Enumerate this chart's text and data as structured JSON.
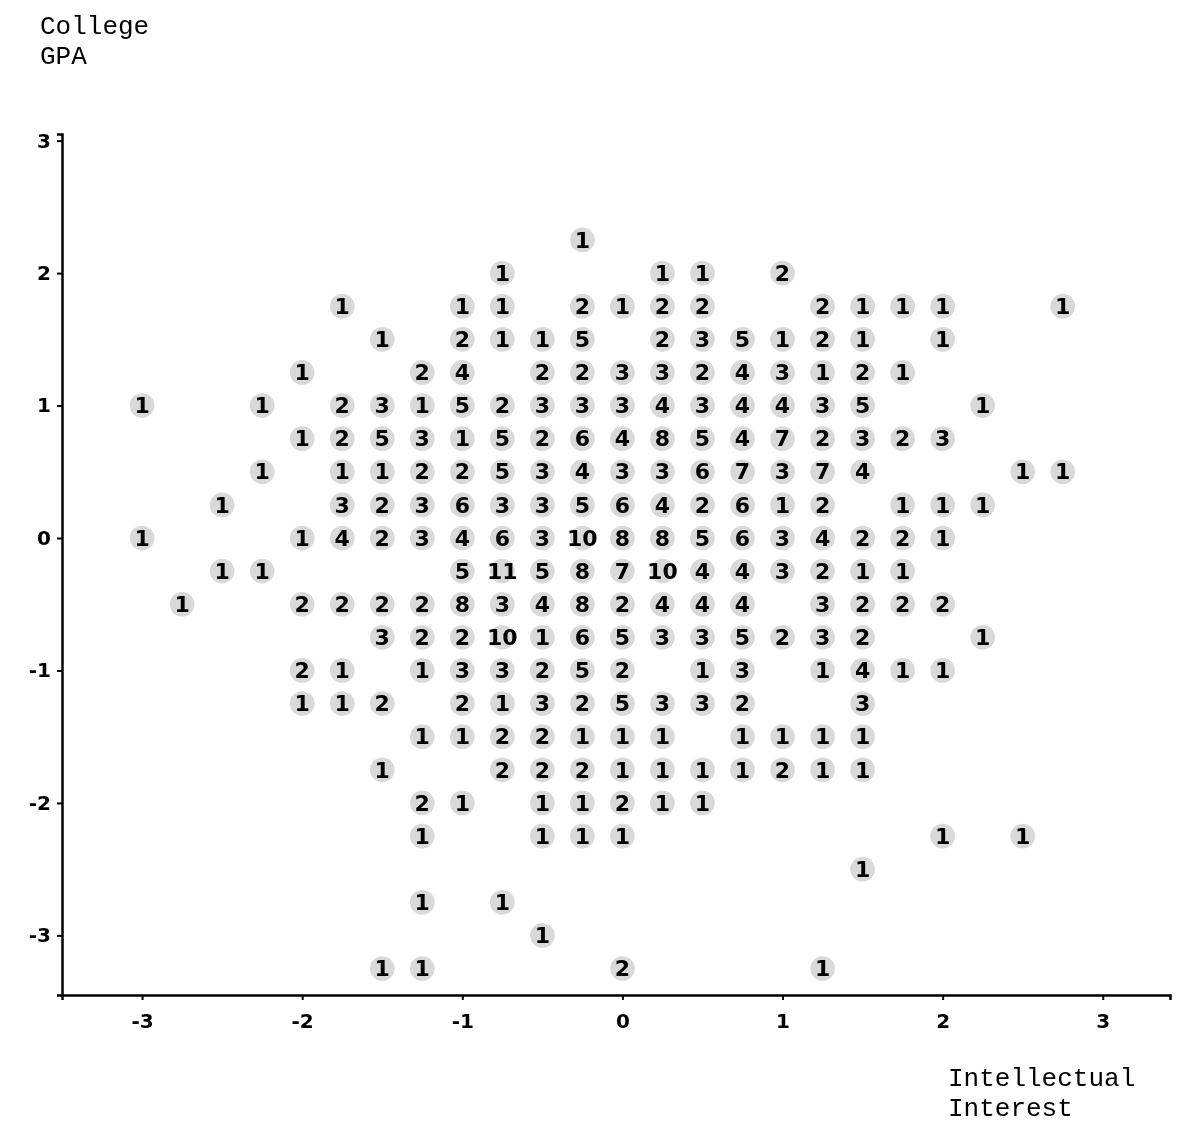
{
  "chart_data": {
    "type": "scatter",
    "xlabel": "Intellectual Interest",
    "ylabel": "College GPA",
    "xlim": [
      -3.5,
      3.42
    ],
    "ylim": [
      -3.45,
      3.05
    ],
    "xticks": [
      -3,
      -2,
      -1,
      0,
      1,
      2,
      3
    ],
    "yticks": [
      -3,
      -2,
      -1,
      0,
      1,
      2,
      3
    ],
    "marker": "circle",
    "series": [
      {
        "color": "#d9d9d9",
        "x": [
          -0.25
        ],
        "values": [
          2.25
        ]
      },
      {
        "color": "#d9d9d9",
        "x": [
          -0.75,
          0.25,
          0.5,
          1
        ],
        "values": [
          2,
          2,
          2,
          2
        ]
      },
      {
        "color": "#d9d9d9",
        "x": [
          -1.75,
          -1,
          -0.75,
          -0.25,
          0,
          0.25,
          0.5,
          1.25,
          1.5,
          1.75,
          2,
          2.75
        ],
        "values": [
          1.75,
          1.75,
          1.75,
          1.75,
          1.75,
          1.75,
          1.75,
          1.75,
          1.75,
          1.75,
          1.75,
          1.75
        ]
      },
      {
        "color": "#d9d9d9",
        "x": [
          -1.5,
          -1,
          -0.75,
          -0.5,
          -0.25,
          0.25,
          0.5,
          0.75,
          1,
          1.25,
          1.5,
          2
        ],
        "values": [
          1.5,
          1.5,
          1.5,
          1.5,
          1.5,
          1.5,
          1.5,
          1.5,
          1.5,
          1.5,
          1.5,
          1.5
        ]
      },
      {
        "color": "#d9d9d9",
        "x": [
          -2,
          -1.25,
          -1,
          -0.5,
          -0.25,
          0,
          0.25,
          0.5,
          0.75,
          1,
          1.25,
          1.5,
          1.75
        ],
        "values": [
          1.25,
          1.25,
          1.25,
          1.25,
          1.25,
          1.25,
          1.25,
          1.25,
          1.25,
          1.25,
          1.25,
          1.25,
          1.25
        ]
      },
      {
        "color": "#d9d9d9",
        "x": [
          -3,
          -2.25,
          -1.75,
          -1.5,
          -1.25,
          -1,
          -0.75,
          -0.5,
          -0.25,
          0,
          0.25,
          0.5,
          0.75,
          1,
          1.25,
          1.5,
          2.25
        ],
        "values": [
          1,
          1,
          1,
          1,
          1,
          1,
          1,
          1,
          1,
          1,
          1,
          1,
          1,
          1,
          1,
          1,
          1
        ]
      },
      {
        "color": "#d9d9d9",
        "x": [
          -2,
          -1.75,
          -1.5,
          -1.25,
          -1,
          -0.75,
          -0.5,
          -0.25,
          0,
          0.25,
          0.5,
          0.75,
          1,
          1.25,
          1.5,
          1.75,
          2
        ],
        "values": [
          0.75,
          0.75,
          0.75,
          0.75,
          0.75,
          0.75,
          0.75,
          0.75,
          0.75,
          0.75,
          0.75,
          0.75,
          0.75,
          0.75,
          0.75,
          0.75,
          0.75
        ]
      },
      {
        "color": "#d9d9d9",
        "x": [
          -2.25,
          -1.75,
          -1.5,
          -1.25,
          -1,
          -0.75,
          -0.5,
          -0.25,
          0,
          0.25,
          0.5,
          0.75,
          1,
          1.25,
          1.5,
          2.5,
          2.75
        ],
        "values": [
          0.5,
          0.5,
          0.5,
          0.5,
          0.5,
          0.5,
          0.5,
          0.5,
          0.5,
          0.5,
          0.5,
          0.5,
          0.5,
          0.5,
          0.5,
          0.5,
          0.5
        ]
      },
      {
        "color": "#d9d9d9",
        "x": [
          -2.5,
          -1.75,
          -1.5,
          -1.25,
          -1,
          -0.75,
          -0.5,
          -0.25,
          0,
          0.25,
          0.5,
          0.75,
          1,
          1.25,
          1.75,
          2,
          2.25
        ],
        "values": [
          0.25,
          0.25,
          0.25,
          0.25,
          0.25,
          0.25,
          0.25,
          0.25,
          0.25,
          0.25,
          0.25,
          0.25,
          0.25,
          0.25,
          0.25,
          0.25,
          0.25
        ]
      },
      {
        "color": "#d9d9d9",
        "x": [
          -3,
          -2,
          -1.75,
          -1.5,
          -1.25,
          -1,
          -0.75,
          -0.5,
          -0.25,
          0,
          0.25,
          0.5,
          0.75,
          1,
          1.25,
          1.5,
          1.75,
          2
        ],
        "values": [
          0,
          0,
          0,
          0,
          0,
          0,
          0,
          0,
          0,
          0,
          0,
          0,
          0,
          0,
          0,
          0,
          0,
          0
        ]
      },
      {
        "color": "#d9d9d9",
        "x": [
          -2.5,
          -2.25,
          -1,
          -0.75,
          -0.5,
          -0.25,
          0,
          0.25,
          0.5,
          0.75,
          1,
          1.25,
          1.5,
          1.75
        ],
        "values": [
          -0.25,
          -0.25,
          -0.25,
          -0.25,
          -0.25,
          -0.25,
          -0.25,
          -0.25,
          -0.25,
          -0.25,
          -0.25,
          -0.25,
          -0.25,
          -0.25
        ]
      },
      {
        "color": "#d9d9d9",
        "x": [
          -2.75,
          -2,
          -1.75,
          -1.5,
          -1.25,
          -1,
          -0.75,
          -0.5,
          -0.25,
          0,
          0.25,
          0.5,
          0.75,
          1.25,
          1.5,
          1.75,
          2
        ],
        "values": [
          -0.5,
          -0.5,
          -0.5,
          -0.5,
          -0.5,
          -0.5,
          -0.5,
          -0.5,
          -0.5,
          -0.5,
          -0.5,
          -0.5,
          -0.5,
          -0.5,
          -0.5,
          -0.5,
          -0.5
        ]
      },
      {
        "color": "#d9d9d9",
        "x": [
          -1.5,
          -1.25,
          -1,
          -0.75,
          -0.5,
          -0.25,
          0,
          0.25,
          0.5,
          0.75,
          1,
          1.25,
          1.5,
          2.25
        ],
        "values": [
          -0.75,
          -0.75,
          -0.75,
          -0.75,
          -0.75,
          -0.75,
          -0.75,
          -0.75,
          -0.75,
          -0.75,
          -0.75,
          -0.75,
          -0.75,
          -0.75
        ]
      },
      {
        "color": "#d9d9d9",
        "x": [
          -2,
          -1.75,
          -1.25,
          -1,
          -0.75,
          -0.5,
          -0.25,
          0,
          0.5,
          0.75,
          1.25,
          1.5,
          1.75,
          2
        ],
        "values": [
          -1,
          -1,
          -1,
          -1,
          -1,
          -1,
          -1,
          -1,
          -1,
          -1,
          -1,
          -1,
          -1,
          -1
        ]
      },
      {
        "color": "#d9d9d9",
        "x": [
          -2,
          -1.75,
          -1.5,
          -1,
          -0.75,
          -0.5,
          -0.25,
          0,
          0.25,
          0.5,
          0.75,
          1.5
        ],
        "values": [
          -1.25,
          -1.25,
          -1.25,
          -1.25,
          -1.25,
          -1.25,
          -1.25,
          -1.25,
          -1.25,
          -1.25,
          -1.25,
          -1.25
        ]
      },
      {
        "color": "#d9d9d9",
        "x": [
          -1.25,
          -1,
          -0.75,
          -0.5,
          -0.25,
          0,
          0.25,
          0.75,
          1,
          1.25,
          1.5
        ],
        "values": [
          -1.5,
          -1.5,
          -1.5,
          -1.5,
          -1.5,
          -1.5,
          -1.5,
          -1.5,
          -1.5,
          -1.5,
          -1.5
        ]
      },
      {
        "color": "#d9d9d9",
        "x": [
          -1.5,
          -0.75,
          -0.5,
          -0.25,
          0,
          0.25,
          0.5,
          0.75,
          1,
          1.25,
          1.5
        ],
        "values": [
          -1.75,
          -1.75,
          -1.75,
          -1.75,
          -1.75,
          -1.75,
          -1.75,
          -1.75,
          -1.75,
          -1.75,
          -1.75
        ]
      },
      {
        "color": "#d9d9d9",
        "x": [
          -1.25,
          -1,
          -0.5,
          -0.25,
          0,
          0.25,
          0.5
        ],
        "values": [
          -2,
          -2,
          -2,
          -2,
          -2,
          -2,
          -2
        ]
      },
      {
        "color": "#d9d9d9",
        "x": [
          -1.25,
          -0.5,
          -0.25,
          0,
          2,
          2.5
        ],
        "values": [
          -2.25,
          -2.25,
          -2.25,
          -2.25,
          -2.25,
          -2.25
        ]
      },
      {
        "color": "#d9d9d9",
        "x": [
          1.5
        ],
        "values": [
          -2.5
        ]
      },
      {
        "color": "#d9d9d9",
        "x": [
          -1.25,
          -0.75
        ],
        "values": [
          -2.75,
          -2.75
        ]
      },
      {
        "color": "#d9d9d9",
        "x": [
          -0.5
        ],
        "values": [
          -3
        ]
      },
      {
        "color": "#d9d9d9",
        "x": [
          -1.5,
          -1.25,
          0,
          1.25
        ],
        "values": [
          -3.25,
          -3.25,
          -3.25,
          -3.25
        ]
      }
    ],
    "annotations": [
      {
        "text": "1",
        "x": -0.25,
        "y": 2.25
      },
      {
        "text": "1",
        "x": -0.75,
        "y": 2
      },
      {
        "text": "1",
        "x": 0.25,
        "y": 2
      },
      {
        "text": "1",
        "x": 0.5,
        "y": 2
      },
      {
        "text": "2",
        "x": 1,
        "y": 2
      },
      {
        "text": "1",
        "x": -1.75,
        "y": 1.75
      },
      {
        "text": "1",
        "x": -1,
        "y": 1.75
      },
      {
        "text": "1",
        "x": -0.75,
        "y": 1.75
      },
      {
        "text": "2",
        "x": -0.25,
        "y": 1.75
      },
      {
        "text": "1",
        "x": 0,
        "y": 1.75
      },
      {
        "text": "2",
        "x": 0.25,
        "y": 1.75
      },
      {
        "text": "2",
        "x": 0.5,
        "y": 1.75
      },
      {
        "text": "2",
        "x": 1.25,
        "y": 1.75
      },
      {
        "text": "1",
        "x": 1.5,
        "y": 1.75
      },
      {
        "text": "1",
        "x": 1.75,
        "y": 1.75
      },
      {
        "text": "1",
        "x": 2,
        "y": 1.75
      },
      {
        "text": "1",
        "x": 2.75,
        "y": 1.75
      },
      {
        "text": "1",
        "x": -1.5,
        "y": 1.5
      },
      {
        "text": "2",
        "x": -1,
        "y": 1.5
      },
      {
        "text": "1",
        "x": -0.75,
        "y": 1.5
      },
      {
        "text": "1",
        "x": -0.5,
        "y": 1.5
      },
      {
        "text": "5",
        "x": -0.25,
        "y": 1.5
      },
      {
        "text": "2",
        "x": 0.25,
        "y": 1.5
      },
      {
        "text": "3",
        "x": 0.5,
        "y": 1.5
      },
      {
        "text": "5",
        "x": 0.75,
        "y": 1.5
      },
      {
        "text": "1",
        "x": 1,
        "y": 1.5
      },
      {
        "text": "2",
        "x": 1.25,
        "y": 1.5
      },
      {
        "text": "1",
        "x": 1.5,
        "y": 1.5
      },
      {
        "text": "1",
        "x": 2,
        "y": 1.5
      },
      {
        "text": "1",
        "x": -2,
        "y": 1.25
      },
      {
        "text": "2",
        "x": -1.25,
        "y": 1.25
      },
      {
        "text": "4",
        "x": -1,
        "y": 1.25
      },
      {
        "text": "2",
        "x": -0.5,
        "y": 1.25
      },
      {
        "text": "2",
        "x": -0.25,
        "y": 1.25
      },
      {
        "text": "3",
        "x": 0,
        "y": 1.25
      },
      {
        "text": "3",
        "x": 0.25,
        "y": 1.25
      },
      {
        "text": "2",
        "x": 0.5,
        "y": 1.25
      },
      {
        "text": "4",
        "x": 0.75,
        "y": 1.25
      },
      {
        "text": "3",
        "x": 1,
        "y": 1.25
      },
      {
        "text": "1",
        "x": 1.25,
        "y": 1.25
      },
      {
        "text": "2",
        "x": 1.5,
        "y": 1.25
      },
      {
        "text": "1",
        "x": 1.75,
        "y": 1.25
      },
      {
        "text": "1",
        "x": -3,
        "y": 1
      },
      {
        "text": "1",
        "x": -2.25,
        "y": 1
      },
      {
        "text": "2",
        "x": -1.75,
        "y": 1
      },
      {
        "text": "3",
        "x": -1.5,
        "y": 1
      },
      {
        "text": "1",
        "x": -1.25,
        "y": 1
      },
      {
        "text": "5",
        "x": -1,
        "y": 1
      },
      {
        "text": "2",
        "x": -0.75,
        "y": 1
      },
      {
        "text": "3",
        "x": -0.5,
        "y": 1
      },
      {
        "text": "3",
        "x": -0.25,
        "y": 1
      },
      {
        "text": "3",
        "x": 0,
        "y": 1
      },
      {
        "text": "4",
        "x": 0.25,
        "y": 1
      },
      {
        "text": "3",
        "x": 0.5,
        "y": 1
      },
      {
        "text": "4",
        "x": 0.75,
        "y": 1
      },
      {
        "text": "4",
        "x": 1,
        "y": 1
      },
      {
        "text": "3",
        "x": 1.25,
        "y": 1
      },
      {
        "text": "5",
        "x": 1.5,
        "y": 1
      },
      {
        "text": "1",
        "x": 2.25,
        "y": 1
      },
      {
        "text": "1",
        "x": -2,
        "y": 0.75
      },
      {
        "text": "2",
        "x": -1.75,
        "y": 0.75
      },
      {
        "text": "5",
        "x": -1.5,
        "y": 0.75
      },
      {
        "text": "3",
        "x": -1.25,
        "y": 0.75
      },
      {
        "text": "1",
        "x": -1,
        "y": 0.75
      },
      {
        "text": "5",
        "x": -0.75,
        "y": 0.75
      },
      {
        "text": "2",
        "x": -0.5,
        "y": 0.75
      },
      {
        "text": "6",
        "x": -0.25,
        "y": 0.75
      },
      {
        "text": "4",
        "x": 0,
        "y": 0.75
      },
      {
        "text": "8",
        "x": 0.25,
        "y": 0.75
      },
      {
        "text": "5",
        "x": 0.5,
        "y": 0.75
      },
      {
        "text": "4",
        "x": 0.75,
        "y": 0.75
      },
      {
        "text": "7",
        "x": 1,
        "y": 0.75
      },
      {
        "text": "2",
        "x": 1.25,
        "y": 0.75
      },
      {
        "text": "3",
        "x": 1.5,
        "y": 0.75
      },
      {
        "text": "2",
        "x": 1.75,
        "y": 0.75
      },
      {
        "text": "3",
        "x": 2,
        "y": 0.75
      },
      {
        "text": "1",
        "x": -2.25,
        "y": 0.5
      },
      {
        "text": "1",
        "x": -1.75,
        "y": 0.5
      },
      {
        "text": "1",
        "x": -1.5,
        "y": 0.5
      },
      {
        "text": "2",
        "x": -1.25,
        "y": 0.5
      },
      {
        "text": "2",
        "x": -1,
        "y": 0.5
      },
      {
        "text": "5",
        "x": -0.75,
        "y": 0.5
      },
      {
        "text": "3",
        "x": -0.5,
        "y": 0.5
      },
      {
        "text": "4",
        "x": -0.25,
        "y": 0.5
      },
      {
        "text": "3",
        "x": 0,
        "y": 0.5
      },
      {
        "text": "3",
        "x": 0.25,
        "y": 0.5
      },
      {
        "text": "6",
        "x": 0.5,
        "y": 0.5
      },
      {
        "text": "7",
        "x": 0.75,
        "y": 0.5
      },
      {
        "text": "3",
        "x": 1,
        "y": 0.5
      },
      {
        "text": "7",
        "x": 1.25,
        "y": 0.5
      },
      {
        "text": "4",
        "x": 1.5,
        "y": 0.5
      },
      {
        "text": "1",
        "x": 2.5,
        "y": 0.5
      },
      {
        "text": "1",
        "x": 2.75,
        "y": 0.5
      },
      {
        "text": "1",
        "x": -2.5,
        "y": 0.25
      },
      {
        "text": "3",
        "x": -1.75,
        "y": 0.25
      },
      {
        "text": "2",
        "x": -1.5,
        "y": 0.25
      },
      {
        "text": "3",
        "x": -1.25,
        "y": 0.25
      },
      {
        "text": "6",
        "x": -1,
        "y": 0.25
      },
      {
        "text": "3",
        "x": -0.75,
        "y": 0.25
      },
      {
        "text": "3",
        "x": -0.5,
        "y": 0.25
      },
      {
        "text": "5",
        "x": -0.25,
        "y": 0.25
      },
      {
        "text": "6",
        "x": 0,
        "y": 0.25
      },
      {
        "text": "4",
        "x": 0.25,
        "y": 0.25
      },
      {
        "text": "2",
        "x": 0.5,
        "y": 0.25
      },
      {
        "text": "6",
        "x": 0.75,
        "y": 0.25
      },
      {
        "text": "1",
        "x": 1,
        "y": 0.25
      },
      {
        "text": "2",
        "x": 1.25,
        "y": 0.25
      },
      {
        "text": "1",
        "x": 1.75,
        "y": 0.25
      },
      {
        "text": "1",
        "x": 2,
        "y": 0.25
      },
      {
        "text": "1",
        "x": 2.25,
        "y": 0.25
      },
      {
        "text": "1",
        "x": -3,
        "y": 0
      },
      {
        "text": "1",
        "x": -2,
        "y": 0
      },
      {
        "text": "4",
        "x": -1.75,
        "y": 0
      },
      {
        "text": "2",
        "x": -1.5,
        "y": 0
      },
      {
        "text": "3",
        "x": -1.25,
        "y": 0
      },
      {
        "text": "4",
        "x": -1,
        "y": 0
      },
      {
        "text": "6",
        "x": -0.75,
        "y": 0
      },
      {
        "text": "3",
        "x": -0.5,
        "y": 0
      },
      {
        "text": "10",
        "x": -0.25,
        "y": 0
      },
      {
        "text": "8",
        "x": 0,
        "y": 0
      },
      {
        "text": "8",
        "x": 0.25,
        "y": 0
      },
      {
        "text": "5",
        "x": 0.5,
        "y": 0
      },
      {
        "text": "6",
        "x": 0.75,
        "y": 0
      },
      {
        "text": "3",
        "x": 1,
        "y": 0
      },
      {
        "text": "4",
        "x": 1.25,
        "y": 0
      },
      {
        "text": "2",
        "x": 1.5,
        "y": 0
      },
      {
        "text": "2",
        "x": 1.75,
        "y": 0
      },
      {
        "text": "1",
        "x": 2,
        "y": 0
      },
      {
        "text": "1",
        "x": -2.5,
        "y": -0.25
      },
      {
        "text": "1",
        "x": -2.25,
        "y": -0.25
      },
      {
        "text": "5",
        "x": -1,
        "y": -0.25
      },
      {
        "text": "11",
        "x": -0.75,
        "y": -0.25
      },
      {
        "text": "5",
        "x": -0.5,
        "y": -0.25
      },
      {
        "text": "8",
        "x": -0.25,
        "y": -0.25
      },
      {
        "text": "7",
        "x": 0,
        "y": -0.25
      },
      {
        "text": "10",
        "x": 0.25,
        "y": -0.25
      },
      {
        "text": "4",
        "x": 0.5,
        "y": -0.25
      },
      {
        "text": "4",
        "x": 0.75,
        "y": -0.25
      },
      {
        "text": "3",
        "x": 1,
        "y": -0.25
      },
      {
        "text": "2",
        "x": 1.25,
        "y": -0.25
      },
      {
        "text": "1",
        "x": 1.5,
        "y": -0.25
      },
      {
        "text": "1",
        "x": 1.75,
        "y": -0.25
      },
      {
        "text": "1",
        "x": -2.75,
        "y": -0.5
      },
      {
        "text": "2",
        "x": -2,
        "y": -0.5
      },
      {
        "text": "2",
        "x": -1.75,
        "y": -0.5
      },
      {
        "text": "2",
        "x": -1.5,
        "y": -0.5
      },
      {
        "text": "2",
        "x": -1.25,
        "y": -0.5
      },
      {
        "text": "8",
        "x": -1,
        "y": -0.5
      },
      {
        "text": "3",
        "x": -0.75,
        "y": -0.5
      },
      {
        "text": "4",
        "x": -0.5,
        "y": -0.5
      },
      {
        "text": "8",
        "x": -0.25,
        "y": -0.5
      },
      {
        "text": "2",
        "x": 0,
        "y": -0.5
      },
      {
        "text": "4",
        "x": 0.25,
        "y": -0.5
      },
      {
        "text": "4",
        "x": 0.5,
        "y": -0.5
      },
      {
        "text": "4",
        "x": 0.75,
        "y": -0.5
      },
      {
        "text": "3",
        "x": 1.25,
        "y": -0.5
      },
      {
        "text": "2",
        "x": 1.5,
        "y": -0.5
      },
      {
        "text": "2",
        "x": 1.75,
        "y": -0.5
      },
      {
        "text": "2",
        "x": 2,
        "y": -0.5
      },
      {
        "text": "3",
        "x": -1.5,
        "y": -0.75
      },
      {
        "text": "2",
        "x": -1.25,
        "y": -0.75
      },
      {
        "text": "2",
        "x": -1,
        "y": -0.75
      },
      {
        "text": "10",
        "x": -0.75,
        "y": -0.75
      },
      {
        "text": "1",
        "x": -0.5,
        "y": -0.75
      },
      {
        "text": "6",
        "x": -0.25,
        "y": -0.75
      },
      {
        "text": "5",
        "x": 0,
        "y": -0.75
      },
      {
        "text": "3",
        "x": 0.25,
        "y": -0.75
      },
      {
        "text": "3",
        "x": 0.5,
        "y": -0.75
      },
      {
        "text": "5",
        "x": 0.75,
        "y": -0.75
      },
      {
        "text": "2",
        "x": 1,
        "y": -0.75
      },
      {
        "text": "3",
        "x": 1.25,
        "y": -0.75
      },
      {
        "text": "2",
        "x": 1.5,
        "y": -0.75
      },
      {
        "text": "1",
        "x": 2.25,
        "y": -0.75
      },
      {
        "text": "2",
        "x": -2,
        "y": -1
      },
      {
        "text": "1",
        "x": -1.75,
        "y": -1
      },
      {
        "text": "1",
        "x": -1.25,
        "y": -1
      },
      {
        "text": "3",
        "x": -1,
        "y": -1
      },
      {
        "text": "3",
        "x": -0.75,
        "y": -1
      },
      {
        "text": "2",
        "x": -0.5,
        "y": -1
      },
      {
        "text": "5",
        "x": -0.25,
        "y": -1
      },
      {
        "text": "2",
        "x": 0,
        "y": -1
      },
      {
        "text": "1",
        "x": 0.5,
        "y": -1
      },
      {
        "text": "3",
        "x": 0.75,
        "y": -1
      },
      {
        "text": "1",
        "x": 1.25,
        "y": -1
      },
      {
        "text": "4",
        "x": 1.5,
        "y": -1
      },
      {
        "text": "1",
        "x": 1.75,
        "y": -1
      },
      {
        "text": "1",
        "x": 2,
        "y": -1
      },
      {
        "text": "1",
        "x": -2,
        "y": -1.25
      },
      {
        "text": "1",
        "x": -1.75,
        "y": -1.25
      },
      {
        "text": "2",
        "x": -1.5,
        "y": -1.25
      },
      {
        "text": "2",
        "x": -1,
        "y": -1.25
      },
      {
        "text": "1",
        "x": -0.75,
        "y": -1.25
      },
      {
        "text": "3",
        "x": -0.5,
        "y": -1.25
      },
      {
        "text": "2",
        "x": -0.25,
        "y": -1.25
      },
      {
        "text": "5",
        "x": 0,
        "y": -1.25
      },
      {
        "text": "3",
        "x": 0.25,
        "y": -1.25
      },
      {
        "text": "3",
        "x": 0.5,
        "y": -1.25
      },
      {
        "text": "2",
        "x": 0.75,
        "y": -1.25
      },
      {
        "text": "3",
        "x": 1.5,
        "y": -1.25
      },
      {
        "text": "1",
        "x": -1.25,
        "y": -1.5
      },
      {
        "text": "1",
        "x": -1,
        "y": -1.5
      },
      {
        "text": "2",
        "x": -0.75,
        "y": -1.5
      },
      {
        "text": "2",
        "x": -0.5,
        "y": -1.5
      },
      {
        "text": "1",
        "x": -0.25,
        "y": -1.5
      },
      {
        "text": "1",
        "x": 0,
        "y": -1.5
      },
      {
        "text": "1",
        "x": 0.25,
        "y": -1.5
      },
      {
        "text": "1",
        "x": 0.75,
        "y": -1.5
      },
      {
        "text": "1",
        "x": 1,
        "y": -1.5
      },
      {
        "text": "1",
        "x": 1.25,
        "y": -1.5
      },
      {
        "text": "1",
        "x": 1.5,
        "y": -1.5
      },
      {
        "text": "1",
        "x": -1.5,
        "y": -1.75
      },
      {
        "text": "2",
        "x": -0.75,
        "y": -1.75
      },
      {
        "text": "2",
        "x": -0.5,
        "y": -1.75
      },
      {
        "text": "2",
        "x": -0.25,
        "y": -1.75
      },
      {
        "text": "1",
        "x": 0,
        "y": -1.75
      },
      {
        "text": "1",
        "x": 0.25,
        "y": -1.75
      },
      {
        "text": "1",
        "x": 0.5,
        "y": -1.75
      },
      {
        "text": "1",
        "x": 0.75,
        "y": -1.75
      },
      {
        "text": "2",
        "x": 1,
        "y": -1.75
      },
      {
        "text": "1",
        "x": 1.25,
        "y": -1.75
      },
      {
        "text": "1",
        "x": 1.5,
        "y": -1.75
      },
      {
        "text": "2",
        "x": -1.25,
        "y": -2
      },
      {
        "text": "1",
        "x": -1,
        "y": -2
      },
      {
        "text": "1",
        "x": -0.5,
        "y": -2
      },
      {
        "text": "1",
        "x": -0.25,
        "y": -2
      },
      {
        "text": "2",
        "x": 0,
        "y": -2
      },
      {
        "text": "1",
        "x": 0.25,
        "y": -2
      },
      {
        "text": "1",
        "x": 0.5,
        "y": -2
      },
      {
        "text": "1",
        "x": -1.25,
        "y": -2.25
      },
      {
        "text": "1",
        "x": -0.5,
        "y": -2.25
      },
      {
        "text": "1",
        "x": -0.25,
        "y": -2.25
      },
      {
        "text": "1",
        "x": 0,
        "y": -2.25
      },
      {
        "text": "1",
        "x": 2,
        "y": -2.25
      },
      {
        "text": "1",
        "x": 2.5,
        "y": -2.25
      },
      {
        "text": "1",
        "x": 1.5,
        "y": -2.5
      },
      {
        "text": "1",
        "x": -1.25,
        "y": -2.75
      },
      {
        "text": "1",
        "x": -0.75,
        "y": -2.75
      },
      {
        "text": "1",
        "x": -0.5,
        "y": -3
      },
      {
        "text": "1",
        "x": -1.5,
        "y": -3.25
      },
      {
        "text": "1",
        "x": -1.25,
        "y": -3.25
      },
      {
        "text": "2",
        "x": 0,
        "y": -3.25
      },
      {
        "text": "1",
        "x": 1.25,
        "y": -3.25
      }
    ]
  }
}
